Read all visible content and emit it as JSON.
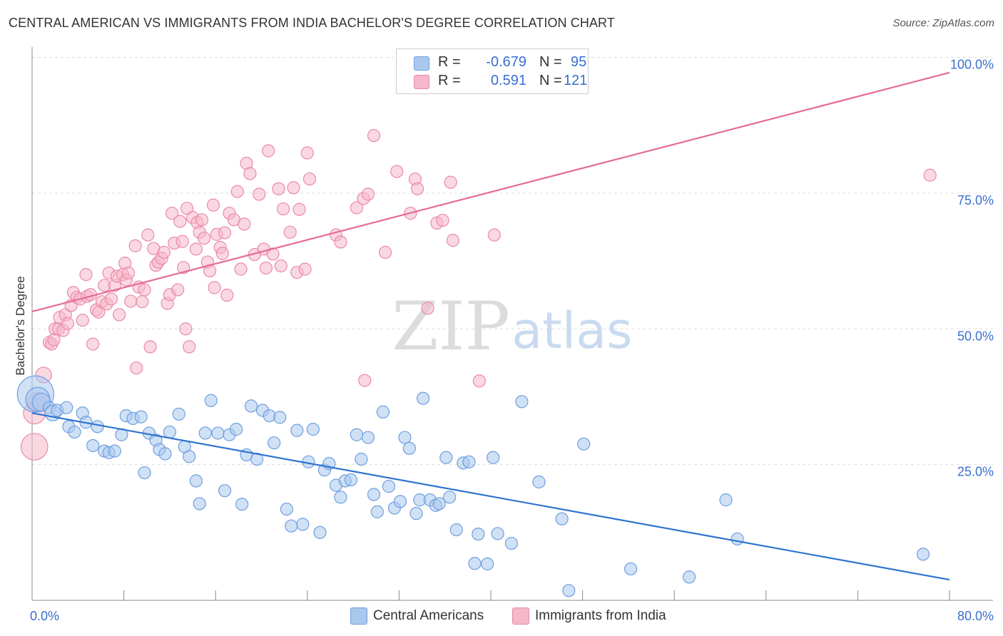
{
  "title": "CENTRAL AMERICAN VS IMMIGRANTS FROM INDIA BACHELOR'S DEGREE CORRELATION CHART",
  "source": "Source: ZipAtlas.com",
  "watermark": {
    "zip": "ZIP",
    "atlas": "atlas"
  },
  "legend": {
    "rows": [
      {
        "r_label": "R =",
        "r_value": "-0.679",
        "n_label": "N =",
        "n_value": "95",
        "color": "#aac8ee"
      },
      {
        "r_label": "R =",
        "r_value": "0.591",
        "n_label": "N =",
        "n_value": "121",
        "color": "#f6b8cb"
      }
    ]
  },
  "bottom_legend": [
    {
      "label": "Central Americans",
      "color": "#aac8ee"
    },
    {
      "label": "Immigrants from India",
      "color": "#f6b8cb"
    }
  ],
  "chart_data": {
    "type": "scatter",
    "ylabel": "Bachelor's Degree",
    "xlabel": "",
    "xlim": [
      0,
      80
    ],
    "ylim": [
      0,
      100
    ],
    "x_tick_labels": [
      {
        "value": 0,
        "label": "0.0%"
      },
      {
        "value": 80,
        "label": "80.0%"
      }
    ],
    "y_tick_labels": [
      {
        "value": 25,
        "label": "25.0%"
      },
      {
        "value": 50,
        "label": "50.0%"
      },
      {
        "value": 75,
        "label": "75.0%"
      },
      {
        "value": 100,
        "label": "100.0%"
      }
    ],
    "grid": true,
    "colors": {
      "blue_fill": "#aac8ee",
      "blue_stroke": "#6f9ede",
      "blue_line": "#2f74d0",
      "pink_fill": "#f6b8cb",
      "pink_stroke": "#ea8aa8",
      "pink_line": "#e56b96",
      "tick_label": "#3a6fd0"
    },
    "series": [
      {
        "name": "Central Americans",
        "trend": {
          "x": [
            0,
            80
          ],
          "y": [
            34.5,
            3.8
          ]
        },
        "points": [
          [
            0.3,
            38.0,
            3
          ],
          [
            0.5,
            37.0,
            2
          ],
          [
            0.8,
            36.5,
            1.5
          ],
          [
            1.5,
            35.5,
            1
          ],
          [
            1.8,
            34.5,
            1.3
          ],
          [
            2.2,
            35.0,
            1
          ],
          [
            3.0,
            35.5,
            1
          ],
          [
            3.2,
            32.0,
            1
          ],
          [
            3.7,
            31.0,
            1
          ],
          [
            4.4,
            34.5,
            1
          ],
          [
            4.7,
            32.8,
            1
          ],
          [
            5.3,
            28.5,
            1
          ],
          [
            5.7,
            32.0,
            1
          ],
          [
            6.3,
            27.5,
            1
          ],
          [
            6.7,
            27.2,
            1
          ],
          [
            7.2,
            27.5,
            1
          ],
          [
            7.8,
            30.5,
            1
          ],
          [
            8.2,
            34.0,
            1
          ],
          [
            8.8,
            33.5,
            1
          ],
          [
            9.5,
            33.8,
            1
          ],
          [
            9.8,
            23.5,
            1
          ],
          [
            10.2,
            30.8,
            1
          ],
          [
            10.8,
            29.5,
            1
          ],
          [
            11.1,
            27.8,
            1
          ],
          [
            11.6,
            27.0,
            1
          ],
          [
            12.0,
            31.0,
            1
          ],
          [
            12.8,
            34.3,
            1
          ],
          [
            13.3,
            28.3,
            1
          ],
          [
            13.7,
            26.5,
            1
          ],
          [
            14.3,
            22.0,
            1
          ],
          [
            14.6,
            17.8,
            1
          ],
          [
            15.1,
            30.8,
            1
          ],
          [
            15.6,
            36.8,
            1
          ],
          [
            16.2,
            30.8,
            1
          ],
          [
            16.8,
            20.2,
            1
          ],
          [
            17.2,
            30.5,
            1
          ],
          [
            17.8,
            31.5,
            1
          ],
          [
            18.3,
            17.7,
            1
          ],
          [
            18.7,
            26.8,
            1
          ],
          [
            19.1,
            35.8,
            1
          ],
          [
            19.6,
            26.0,
            1
          ],
          [
            20.1,
            35.0,
            1
          ],
          [
            20.7,
            34.0,
            1
          ],
          [
            21.1,
            29.0,
            1
          ],
          [
            21.6,
            33.7,
            1
          ],
          [
            22.2,
            16.8,
            1
          ],
          [
            22.6,
            13.7,
            1
          ],
          [
            23.1,
            31.3,
            1
          ],
          [
            23.6,
            14.0,
            1
          ],
          [
            24.1,
            25.5,
            1
          ],
          [
            24.5,
            31.5,
            1
          ],
          [
            25.1,
            12.5,
            1
          ],
          [
            25.5,
            24.0,
            1
          ],
          [
            25.9,
            25.2,
            1
          ],
          [
            26.5,
            21.2,
            1
          ],
          [
            26.9,
            19.0,
            1
          ],
          [
            27.3,
            22.0,
            1
          ],
          [
            27.8,
            22.2,
            1
          ],
          [
            28.3,
            30.5,
            1
          ],
          [
            28.7,
            26.0,
            1
          ],
          [
            29.3,
            30.0,
            1
          ],
          [
            29.8,
            19.5,
            1
          ],
          [
            30.1,
            16.3,
            1
          ],
          [
            30.6,
            34.7,
            1
          ],
          [
            31.1,
            21.0,
            1
          ],
          [
            31.6,
            17.0,
            1
          ],
          [
            32.1,
            18.2,
            1
          ],
          [
            32.5,
            30.0,
            1
          ],
          [
            32.9,
            28.0,
            1
          ],
          [
            33.5,
            16.0,
            1
          ],
          [
            33.8,
            18.5,
            1
          ],
          [
            34.1,
            37.2,
            1
          ],
          [
            34.7,
            18.5,
            1
          ],
          [
            35.2,
            17.5,
            1
          ],
          [
            35.5,
            17.8,
            1
          ],
          [
            36.1,
            26.3,
            1
          ],
          [
            36.4,
            19.0,
            1
          ],
          [
            37.0,
            13.0,
            1
          ],
          [
            37.6,
            25.3,
            1
          ],
          [
            38.1,
            25.5,
            1
          ],
          [
            38.6,
            6.8,
            1
          ],
          [
            38.9,
            12.2,
            1
          ],
          [
            39.7,
            6.7,
            1
          ],
          [
            40.2,
            26.3,
            1
          ],
          [
            40.6,
            12.3,
            1
          ],
          [
            41.8,
            10.5,
            1
          ],
          [
            42.7,
            36.6,
            1
          ],
          [
            44.2,
            21.8,
            1
          ],
          [
            46.2,
            15.0,
            1
          ],
          [
            46.8,
            1.8,
            1
          ],
          [
            48.1,
            28.8,
            1
          ],
          [
            52.2,
            5.8,
            1
          ],
          [
            57.3,
            4.3,
            1
          ],
          [
            60.5,
            18.5,
            1
          ],
          [
            61.5,
            11.3,
            1
          ],
          [
            77.7,
            8.5,
            1
          ]
        ]
      },
      {
        "name": "Immigrants from India",
        "trend": {
          "x": [
            0,
            80
          ],
          "y": [
            53.2,
            97.2
          ]
        },
        "points": [
          [
            0.2,
            34.5,
            1.8
          ],
          [
            0.2,
            28.3,
            2.2
          ],
          [
            0.4,
            36.6,
            1.5
          ],
          [
            1.0,
            41.5,
            1.3
          ],
          [
            1.5,
            47.5,
            1
          ],
          [
            1.7,
            47.2,
            1
          ],
          [
            1.9,
            48.0,
            1
          ],
          [
            2.0,
            50.0,
            1
          ],
          [
            2.3,
            50.0,
            1
          ],
          [
            2.4,
            52.1,
            1
          ],
          [
            2.7,
            49.7,
            1
          ],
          [
            2.9,
            52.6,
            1
          ],
          [
            3.1,
            51.0,
            1
          ],
          [
            3.4,
            54.3,
            1
          ],
          [
            3.6,
            56.7,
            1
          ],
          [
            3.9,
            55.8,
            1
          ],
          [
            4.2,
            55.5,
            1
          ],
          [
            4.4,
            51.6,
            1
          ],
          [
            4.7,
            60.0,
            1
          ],
          [
            4.8,
            56.0,
            1
          ],
          [
            5.1,
            56.3,
            1
          ],
          [
            5.3,
            47.2,
            1
          ],
          [
            5.6,
            53.5,
            1
          ],
          [
            5.8,
            53.1,
            1
          ],
          [
            6.1,
            55.0,
            1
          ],
          [
            6.3,
            58.0,
            1
          ],
          [
            6.5,
            54.6,
            1
          ],
          [
            6.7,
            60.3,
            1
          ],
          [
            6.9,
            55.5,
            1
          ],
          [
            7.2,
            58.0,
            1
          ],
          [
            7.4,
            59.7,
            1
          ],
          [
            7.6,
            52.6,
            1
          ],
          [
            7.9,
            60.0,
            1
          ],
          [
            8.1,
            62.1,
            1
          ],
          [
            8.2,
            59.0,
            1
          ],
          [
            8.4,
            60.3,
            1
          ],
          [
            8.6,
            55.1,
            1
          ],
          [
            9.0,
            65.3,
            1
          ],
          [
            9.1,
            42.8,
            1
          ],
          [
            9.3,
            57.7,
            1
          ],
          [
            9.6,
            55.0,
            1
          ],
          [
            9.8,
            57.2,
            1
          ],
          [
            10.1,
            67.3,
            1
          ],
          [
            10.3,
            46.7,
            1
          ],
          [
            10.6,
            64.8,
            1
          ],
          [
            10.8,
            61.7,
            1
          ],
          [
            11.0,
            62.3,
            1
          ],
          [
            11.3,
            63.0,
            1
          ],
          [
            11.5,
            64.1,
            1
          ],
          [
            11.8,
            54.7,
            1
          ],
          [
            12.0,
            56.3,
            1
          ],
          [
            12.2,
            71.3,
            1
          ],
          [
            12.4,
            65.8,
            1
          ],
          [
            12.7,
            57.2,
            1
          ],
          [
            12.9,
            69.8,
            1
          ],
          [
            13.1,
            66.1,
            1
          ],
          [
            13.2,
            61.3,
            1
          ],
          [
            13.4,
            50.0,
            1
          ],
          [
            13.5,
            72.2,
            1
          ],
          [
            13.7,
            46.7,
            1
          ],
          [
            14.0,
            70.5,
            1
          ],
          [
            14.3,
            64.7,
            1
          ],
          [
            14.4,
            69.6,
            1
          ],
          [
            14.6,
            67.8,
            1
          ],
          [
            14.8,
            70.1,
            1
          ],
          [
            15.0,
            66.7,
            1
          ],
          [
            15.3,
            62.3,
            1
          ],
          [
            15.5,
            60.7,
            1
          ],
          [
            15.8,
            72.8,
            1
          ],
          [
            15.9,
            57.6,
            1
          ],
          [
            16.1,
            67.4,
            1
          ],
          [
            16.4,
            65.0,
            1
          ],
          [
            16.6,
            63.9,
            1
          ],
          [
            16.8,
            67.7,
            1
          ],
          [
            17.0,
            56.2,
            1
          ],
          [
            17.2,
            71.3,
            1
          ],
          [
            17.6,
            70.1,
            1
          ],
          [
            17.9,
            75.3,
            1
          ],
          [
            18.2,
            61.0,
            1
          ],
          [
            18.5,
            69.3,
            1
          ],
          [
            18.7,
            80.5,
            1
          ],
          [
            19.0,
            78.6,
            1
          ],
          [
            19.4,
            63.7,
            1
          ],
          [
            19.8,
            74.8,
            1
          ],
          [
            20.2,
            64.7,
            1
          ],
          [
            20.4,
            61.2,
            1
          ],
          [
            20.6,
            82.8,
            1
          ],
          [
            21.0,
            63.8,
            1
          ],
          [
            21.5,
            75.8,
            1
          ],
          [
            21.7,
            61.6,
            1
          ],
          [
            21.9,
            72.1,
            1
          ],
          [
            22.5,
            67.8,
            1
          ],
          [
            22.8,
            76.0,
            1
          ],
          [
            23.1,
            60.4,
            1
          ],
          [
            23.3,
            72.0,
            1
          ],
          [
            23.8,
            61.0,
            1
          ],
          [
            24.0,
            82.4,
            1
          ],
          [
            24.2,
            77.6,
            1
          ],
          [
            26.5,
            67.3,
            1
          ],
          [
            26.9,
            66.0,
            1
          ],
          [
            28.3,
            72.3,
            1
          ],
          [
            28.9,
            74.0,
            1
          ],
          [
            29.3,
            74.8,
            1
          ],
          [
            29.0,
            40.5,
            1
          ],
          [
            29.8,
            85.6,
            1
          ],
          [
            30.8,
            64.1,
            1
          ],
          [
            31.8,
            79.0,
            1
          ],
          [
            33.0,
            71.3,
            1
          ],
          [
            33.4,
            77.6,
            1
          ],
          [
            33.6,
            75.8,
            1
          ],
          [
            34.5,
            53.8,
            1
          ],
          [
            35.3,
            69.5,
            1
          ],
          [
            35.8,
            70.0,
            1
          ],
          [
            36.5,
            77.0,
            1
          ],
          [
            36.7,
            66.3,
            1
          ],
          [
            39.0,
            40.4,
            1
          ],
          [
            40.3,
            67.3,
            1
          ],
          [
            78.3,
            78.3,
            1
          ]
        ]
      }
    ]
  }
}
